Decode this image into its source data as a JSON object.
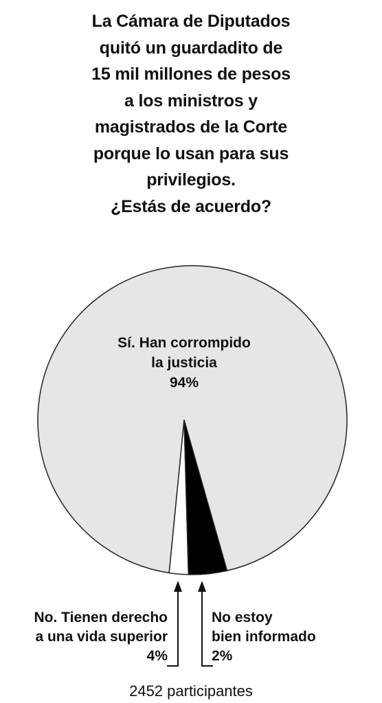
{
  "question": {
    "lines": [
      "La Cámara de Diputados",
      "quitó un guardadito de",
      "15 mil millones de pesos",
      "a los ministros y",
      "magistrados de la Corte",
      "porque lo usan para sus",
      "privilegios.",
      "¿Estás de acuerdo?"
    ]
  },
  "chart_data": {
    "type": "pie",
    "slices": [
      {
        "label_lines": [
          "Sí. Han corrompido",
          "la justicia"
        ],
        "percent_label": "94%",
        "value": 94,
        "color": "#e6e6e6"
      },
      {
        "label_lines": [
          "No. Tienen derecho",
          "a una vida superior"
        ],
        "percent_label": "4%",
        "value": 4,
        "color": "#000000"
      },
      {
        "label_lines": [
          "No estoy",
          "bien informado"
        ],
        "percent_label": "2%",
        "value": 2,
        "color": "#ffffff"
      }
    ],
    "participants": "2452 participantes"
  },
  "colors": {
    "outline": "#222222",
    "text": "#111111"
  }
}
